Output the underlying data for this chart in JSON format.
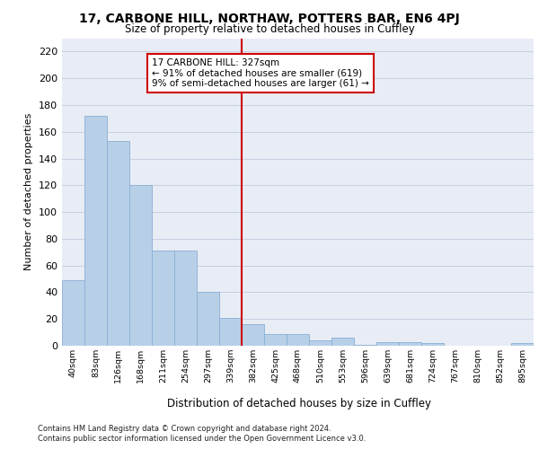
{
  "title1": "17, CARBONE HILL, NORTHAW, POTTERS BAR, EN6 4PJ",
  "title2": "Size of property relative to detached houses in Cuffley",
  "xlabel": "Distribution of detached houses by size in Cuffley",
  "ylabel": "Number of detached properties",
  "categories": [
    "40sqm",
    "83sqm",
    "126sqm",
    "168sqm",
    "211sqm",
    "254sqm",
    "297sqm",
    "339sqm",
    "382sqm",
    "425sqm",
    "468sqm",
    "510sqm",
    "553sqm",
    "596sqm",
    "639sqm",
    "681sqm",
    "724sqm",
    "767sqm",
    "810sqm",
    "852sqm",
    "895sqm"
  ],
  "values": [
    49,
    172,
    153,
    120,
    71,
    71,
    40,
    21,
    16,
    9,
    9,
    4,
    6,
    1,
    3,
    3,
    2,
    0,
    0,
    0,
    2
  ],
  "bar_color": "#b8cfe8",
  "bar_edge_color": "#89afd4",
  "vline_pos": 7.5,
  "annotation_line1": "17 CARBONE HILL: 327sqm",
  "annotation_line2": "← 91% of detached houses are smaller (619)",
  "annotation_line3": "9% of semi-detached houses are larger (61) →",
  "annotation_box_color": "#ffffff",
  "annotation_box_edge": "#cc0000",
  "vline_color": "#cc0000",
  "grid_color": "#c8cfe0",
  "bg_color": "#e8ecf5",
  "ylim": [
    0,
    230
  ],
  "yticks": [
    0,
    20,
    40,
    60,
    80,
    100,
    120,
    140,
    160,
    180,
    200,
    220
  ],
  "footer1": "Contains HM Land Registry data © Crown copyright and database right 2024.",
  "footer2": "Contains public sector information licensed under the Open Government Licence v3.0."
}
